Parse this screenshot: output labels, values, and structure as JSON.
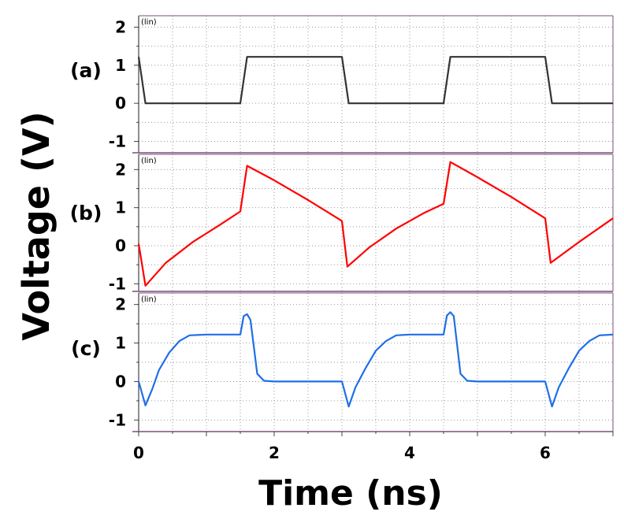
{
  "chart_data": [
    {
      "type": "line",
      "panel_label": "(a)",
      "scale_label": "(lin)",
      "ylim": [
        -1.3,
        2.3
      ],
      "yticks": [
        "-1",
        "0",
        "1",
        "2"
      ],
      "series": [
        {
          "color": "#333333",
          "x": [
            0.0,
            0.1,
            1.5,
            1.6,
            3.0,
            3.1,
            4.5,
            4.6,
            6.0,
            6.1,
            7.0
          ],
          "y": [
            1.22,
            0.0,
            0.0,
            1.22,
            1.22,
            0.0,
            0.0,
            1.22,
            1.22,
            0.0,
            0.0
          ]
        }
      ]
    },
    {
      "type": "line",
      "panel_label": "(b)",
      "scale_label": "(lin)",
      "ylim": [
        -1.2,
        2.4
      ],
      "yticks": [
        "-1",
        "0",
        "1",
        "2"
      ],
      "series": [
        {
          "color": "#ff0000",
          "x": [
            0.0,
            0.1,
            0.4,
            0.8,
            1.2,
            1.5,
            1.6,
            2.0,
            2.5,
            3.0,
            3.08,
            3.4,
            3.8,
            4.2,
            4.5,
            4.6,
            5.0,
            5.5,
            6.0,
            6.08,
            6.5,
            7.0
          ],
          "y": [
            0.05,
            -1.05,
            -0.45,
            0.1,
            0.55,
            0.9,
            2.1,
            1.72,
            1.2,
            0.65,
            -0.55,
            -0.05,
            0.45,
            0.85,
            1.1,
            2.2,
            1.8,
            1.28,
            0.72,
            -0.45,
            0.1,
            0.72
          ]
        }
      ]
    },
    {
      "type": "line",
      "panel_label": "(c)",
      "scale_label": "(lin)",
      "ylim": [
        -1.3,
        2.3
      ],
      "yticks": [
        "-1",
        "0",
        "1",
        "2"
      ],
      "xlim": [
        0,
        7
      ],
      "xticks": [
        "0",
        "2",
        "4",
        "6"
      ],
      "series": [
        {
          "color": "#1f6fe8",
          "x": [
            0.0,
            0.1,
            0.2,
            0.3,
            0.45,
            0.6,
            0.75,
            1.0,
            1.5,
            1.55,
            1.6,
            1.65,
            1.7,
            1.75,
            1.85,
            2.0,
            2.5,
            3.0,
            3.1,
            3.2,
            3.35,
            3.5,
            3.65,
            3.8,
            4.0,
            4.5,
            4.55,
            4.6,
            4.65,
            4.7,
            4.75,
            4.85,
            5.0,
            5.5,
            6.0,
            6.1,
            6.2,
            6.35,
            6.5,
            6.65,
            6.8,
            7.0
          ],
          "y": [
            0.0,
            -0.62,
            -0.2,
            0.3,
            0.75,
            1.05,
            1.2,
            1.22,
            1.22,
            1.7,
            1.75,
            1.6,
            0.9,
            0.2,
            0.02,
            0.0,
            0.0,
            0.0,
            -0.65,
            -0.15,
            0.35,
            0.8,
            1.05,
            1.2,
            1.22,
            1.22,
            1.72,
            1.8,
            1.7,
            0.95,
            0.2,
            0.02,
            0.0,
            0.0,
            0.0,
            -0.65,
            -0.15,
            0.35,
            0.8,
            1.05,
            1.2,
            1.22
          ]
        }
      ]
    }
  ],
  "axes": {
    "ylabel": "Voltage (V)",
    "xlabel": "Time (ns)"
  },
  "style": {
    "frame_color": "#7a4f7a",
    "grid_color": "#9a9a9a"
  }
}
